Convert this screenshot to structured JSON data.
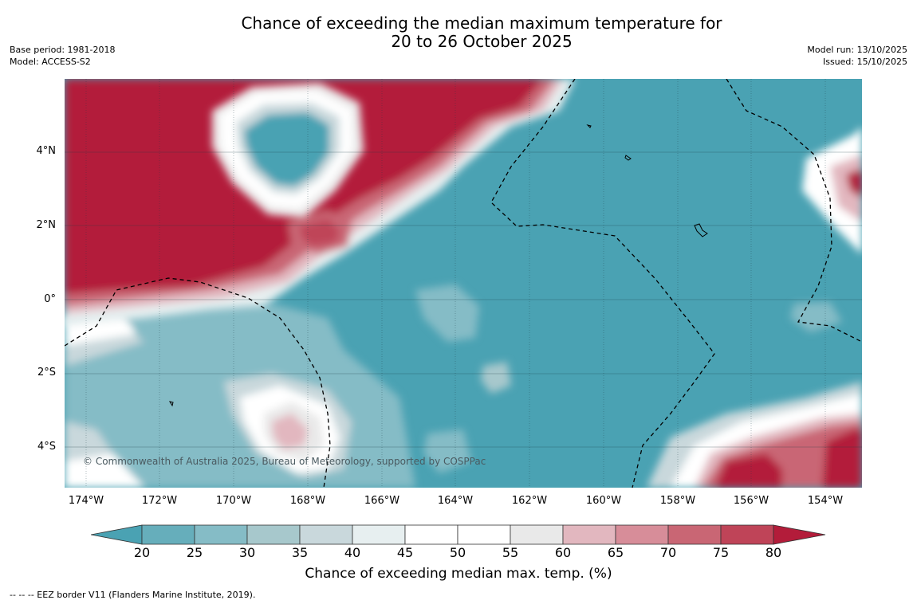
{
  "title": {
    "line1": "Chance of exceeding the median maximum temperature for",
    "line2": "20 to 26 October 2025"
  },
  "meta_left": {
    "base_period": "Base period: 1981-2018",
    "model": "Model: ACCESS-S2"
  },
  "meta_right": {
    "model_run": "Model run: 13/10/2025",
    "issued": "Issued: 15/10/2025"
  },
  "map": {
    "lat_labels": [
      "4°N",
      "2°N",
      "0°",
      "2°S",
      "4°S"
    ],
    "lon_labels": [
      "174°W",
      "172°W",
      "170°W",
      "168°W",
      "166°W",
      "164°W",
      "162°W",
      "160°W",
      "158°W",
      "156°W",
      "154°W"
    ],
    "copyright": "© Commonwealth of Australia 2025, Bureau of Meteorology, supported by COSPPac",
    "colors": {
      "below": "#4aa2b3",
      "c20_25": "#66aebb",
      "c25_30": "#85bcc6",
      "c30_35": "#a7c8cc",
      "c35_40": "#c9d8dc",
      "c40_45": "#e7eff0",
      "c45_50": "#ffffff",
      "c50_55": "#ffffff",
      "c55_60": "#e9e9e9",
      "c60_65": "#e2b7bf",
      "c65_70": "#d78d99",
      "c70_75": "#c96674",
      "c75_80": "#bf4458",
      "above": "#b31c3a"
    }
  },
  "colorbar": {
    "ticks": [
      "20",
      "25",
      "30",
      "35",
      "40",
      "45",
      "50",
      "55",
      "60",
      "65",
      "70",
      "75",
      "80"
    ],
    "label": "Chance of exceeding median max. temp. (%)"
  },
  "footnote": "--  --  -- EEZ border V11 (Flanders Marine Institute, 2019)."
}
